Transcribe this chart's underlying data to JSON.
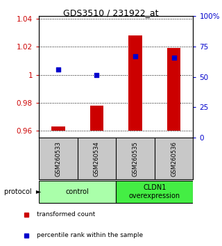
{
  "title": "GDS3510 / 231922_at",
  "samples": [
    "GSM260533",
    "GSM260534",
    "GSM260535",
    "GSM260536"
  ],
  "bar_values": [
    0.963,
    0.978,
    1.028,
    1.019
  ],
  "bar_base": 0.96,
  "dot_values": [
    1.004,
    1.0,
    1.013,
    1.012
  ],
  "ylim_left": [
    0.955,
    1.042
  ],
  "ylim_right": [
    0,
    100
  ],
  "yticks_left": [
    0.96,
    0.98,
    1.0,
    1.02,
    1.04
  ],
  "ytick_labels_left": [
    "0.96",
    "0.98",
    "1",
    "1.02",
    "1.04"
  ],
  "yticks_right": [
    0,
    25,
    50,
    75,
    100
  ],
  "ytick_labels_right": [
    "0",
    "25",
    "50",
    "75",
    "100%"
  ],
  "bar_color": "#cc0000",
  "dot_color": "#0000cc",
  "bg_color": "#ffffff",
  "sample_bg": "#c8c8c8",
  "control_color": "#aaffaa",
  "cldn1_color": "#44ee44",
  "legend_bar_label": "transformed count",
  "legend_dot_label": "percentile rank within the sample",
  "protocol_label": "protocol"
}
